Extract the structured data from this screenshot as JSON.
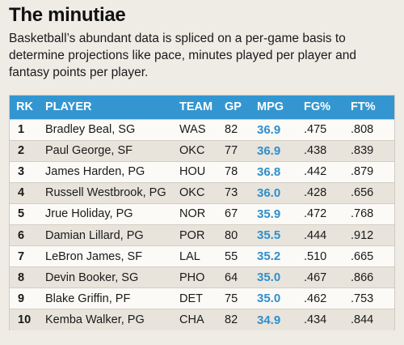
{
  "heading": {
    "title": "The minutiae",
    "subtitle": "Basketball’s abundant data is spliced on a per-game basis to determine projections like pace, minutes played per player and fantasy points per player."
  },
  "colors": {
    "header_bg": "#3396d1",
    "mpg_text": "#2f8fcc",
    "page_bg": "#efece6",
    "alt_row": "#e8e4dc"
  },
  "chart_data": {
    "type": "table",
    "columns": [
      "RK",
      "PLAYER",
      "TEAM",
      "GP",
      "MPG",
      "FG%",
      "FT%"
    ],
    "rows": [
      [
        "1",
        "Bradley Beal, SG",
        "WAS",
        "82",
        "36.9",
        ".475",
        ".808"
      ],
      [
        "2",
        "Paul George, SF",
        "OKC",
        "77",
        "36.9",
        ".438",
        ".839"
      ],
      [
        "3",
        "James Harden, PG",
        "HOU",
        "78",
        "36.8",
        ".442",
        ".879"
      ],
      [
        "4",
        "Russell Westbrook, PG",
        "OKC",
        "73",
        "36.0",
        ".428",
        ".656"
      ],
      [
        "5",
        "Jrue Holiday, PG",
        "NOR",
        "67",
        "35.9",
        ".472",
        ".768"
      ],
      [
        "6",
        "Damian Lillard, PG",
        "POR",
        "80",
        "35.5",
        ".444",
        ".912"
      ],
      [
        "7",
        "LeBron James, SF",
        "LAL",
        "55",
        "35.2",
        ".510",
        ".665"
      ],
      [
        "8",
        "Devin Booker, SG",
        "PHO",
        "64",
        "35.0",
        ".467",
        ".866"
      ],
      [
        "9",
        "Blake Griffin, PF",
        "DET",
        "75",
        "35.0",
        ".462",
        ".753"
      ],
      [
        "10",
        "Kemba Walker, PG",
        "CHA",
        "82",
        "34.9",
        ".434",
        ".844"
      ]
    ]
  }
}
